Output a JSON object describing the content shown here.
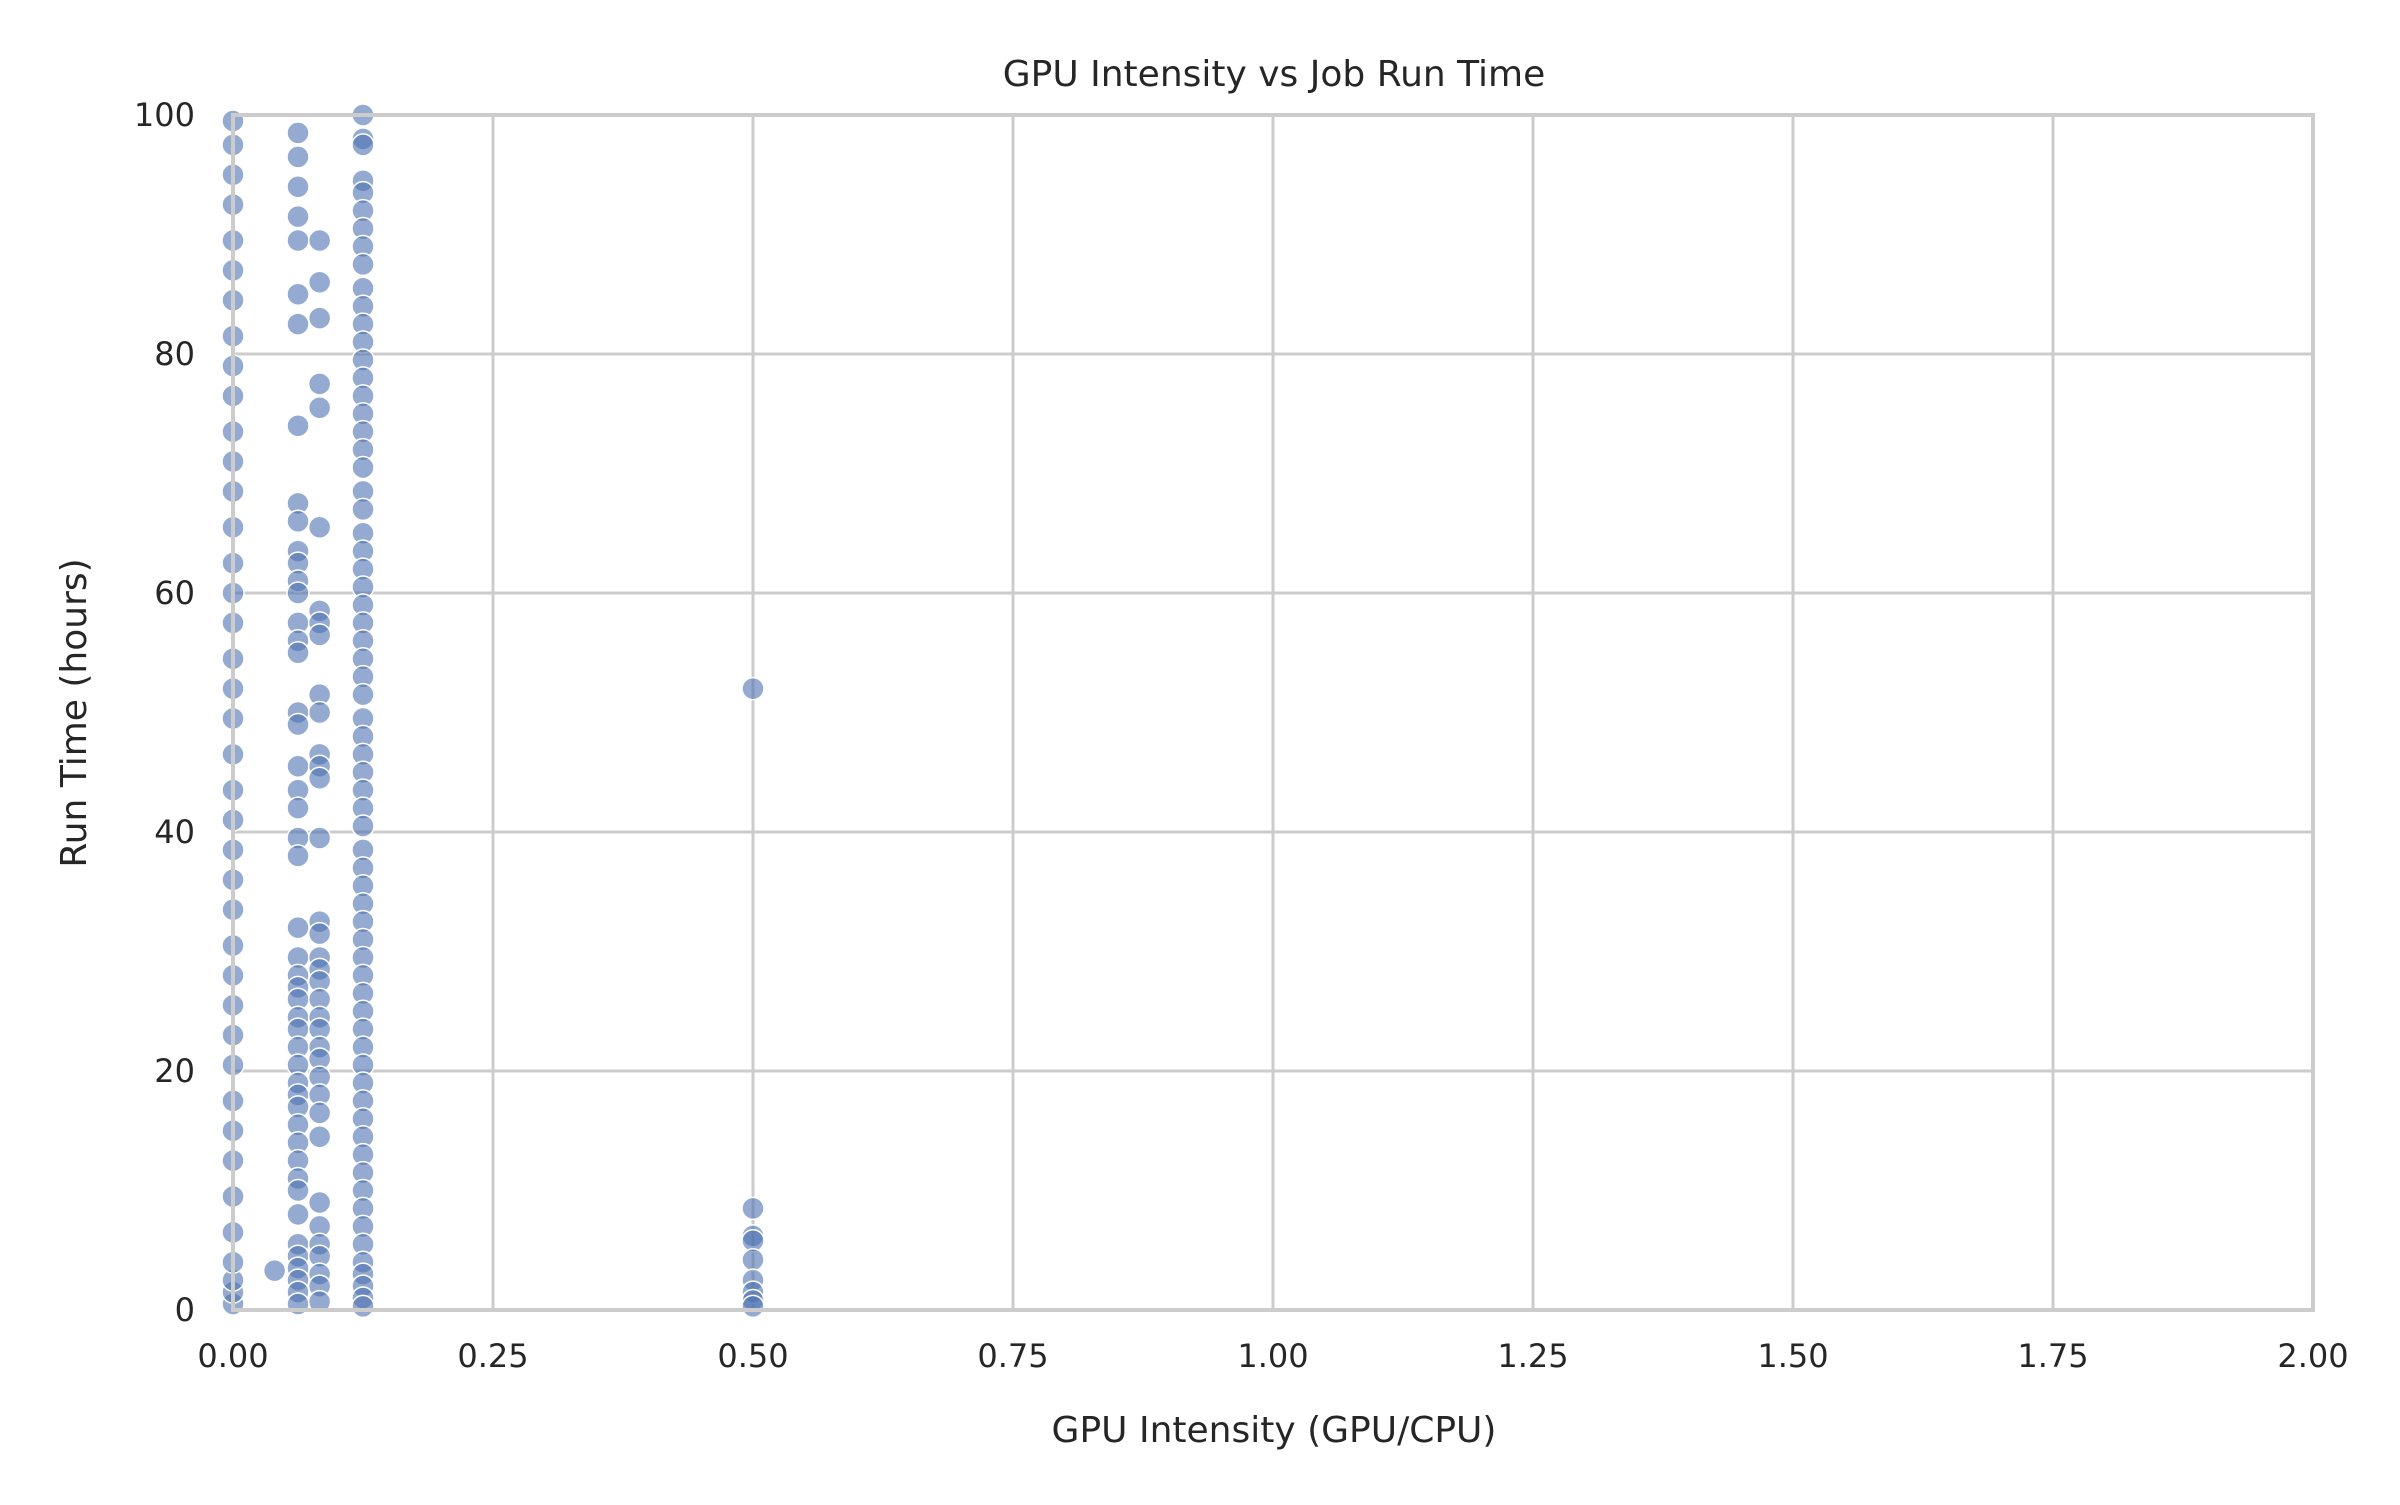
{
  "chart_data": {
    "type": "scatter",
    "title": "GPU Intensity vs Job Run Time",
    "xlabel": "GPU Intensity (GPU/CPU)",
    "ylabel": "Run Time (hours)",
    "xlim": [
      0,
      2.0
    ],
    "ylim": [
      0,
      100
    ],
    "x_ticks": [
      "0.00",
      "0.25",
      "0.50",
      "0.75",
      "1.00",
      "1.25",
      "1.50",
      "1.75",
      "2.00"
    ],
    "y_ticks": [
      "0",
      "20",
      "40",
      "60",
      "80",
      "100"
    ],
    "grid": true,
    "legend": "none",
    "marker_color": "#4c72b0",
    "grid_color": "#cccccc",
    "points": [
      {
        "x": 0.0,
        "y": 0.5
      },
      {
        "x": 0.0,
        "y": 1.5
      },
      {
        "x": 0.0,
        "y": 2.5
      },
      {
        "x": 0.0,
        "y": 4.0
      },
      {
        "x": 0.0,
        "y": 6.5
      },
      {
        "x": 0.0,
        "y": 9.5
      },
      {
        "x": 0.0,
        "y": 12.5
      },
      {
        "x": 0.0,
        "y": 15.0
      },
      {
        "x": 0.0,
        "y": 17.5
      },
      {
        "x": 0.0,
        "y": 20.5
      },
      {
        "x": 0.0,
        "y": 23.0
      },
      {
        "x": 0.0,
        "y": 25.5
      },
      {
        "x": 0.0,
        "y": 28.0
      },
      {
        "x": 0.0,
        "y": 30.5
      },
      {
        "x": 0.0,
        "y": 33.5
      },
      {
        "x": 0.0,
        "y": 36.0
      },
      {
        "x": 0.0,
        "y": 38.5
      },
      {
        "x": 0.0,
        "y": 41.0
      },
      {
        "x": 0.0,
        "y": 43.5
      },
      {
        "x": 0.0,
        "y": 46.5
      },
      {
        "x": 0.0,
        "y": 49.5
      },
      {
        "x": 0.0,
        "y": 52.0
      },
      {
        "x": 0.0,
        "y": 54.5
      },
      {
        "x": 0.0,
        "y": 57.5
      },
      {
        "x": 0.0,
        "y": 60.0
      },
      {
        "x": 0.0,
        "y": 62.5
      },
      {
        "x": 0.0,
        "y": 65.5
      },
      {
        "x": 0.0,
        "y": 68.5
      },
      {
        "x": 0.0,
        "y": 71.0
      },
      {
        "x": 0.0,
        "y": 73.5
      },
      {
        "x": 0.0,
        "y": 76.5
      },
      {
        "x": 0.0,
        "y": 79.0
      },
      {
        "x": 0.0,
        "y": 81.5
      },
      {
        "x": 0.0,
        "y": 84.5
      },
      {
        "x": 0.0,
        "y": 87.0
      },
      {
        "x": 0.0,
        "y": 89.5
      },
      {
        "x": 0.0,
        "y": 92.5
      },
      {
        "x": 0.0,
        "y": 95.0
      },
      {
        "x": 0.0,
        "y": 97.5
      },
      {
        "x": 0.0,
        "y": 99.5
      },
      {
        "x": 0.04,
        "y": 3.3
      },
      {
        "x": 0.0625,
        "y": 98.5
      },
      {
        "x": 0.0625,
        "y": 96.5
      },
      {
        "x": 0.0625,
        "y": 94.0
      },
      {
        "x": 0.0625,
        "y": 91.5
      },
      {
        "x": 0.0625,
        "y": 89.5
      },
      {
        "x": 0.0625,
        "y": 85.0
      },
      {
        "x": 0.0625,
        "y": 82.5
      },
      {
        "x": 0.0625,
        "y": 74.0
      },
      {
        "x": 0.0625,
        "y": 67.5
      },
      {
        "x": 0.0625,
        "y": 66.0
      },
      {
        "x": 0.0625,
        "y": 63.5
      },
      {
        "x": 0.0625,
        "y": 62.5
      },
      {
        "x": 0.0625,
        "y": 61.0
      },
      {
        "x": 0.0625,
        "y": 60.0
      },
      {
        "x": 0.0625,
        "y": 57.5
      },
      {
        "x": 0.0625,
        "y": 56.0
      },
      {
        "x": 0.0625,
        "y": 55.0
      },
      {
        "x": 0.0625,
        "y": 50.0
      },
      {
        "x": 0.0625,
        "y": 49.0
      },
      {
        "x": 0.0625,
        "y": 45.5
      },
      {
        "x": 0.0625,
        "y": 43.5
      },
      {
        "x": 0.0625,
        "y": 42.0
      },
      {
        "x": 0.0625,
        "y": 39.5
      },
      {
        "x": 0.0625,
        "y": 38.0
      },
      {
        "x": 0.0625,
        "y": 32.0
      },
      {
        "x": 0.0625,
        "y": 29.5
      },
      {
        "x": 0.0625,
        "y": 28.0
      },
      {
        "x": 0.0625,
        "y": 27.0
      },
      {
        "x": 0.0625,
        "y": 26.0
      },
      {
        "x": 0.0625,
        "y": 24.5
      },
      {
        "x": 0.0625,
        "y": 23.5
      },
      {
        "x": 0.0625,
        "y": 22.0
      },
      {
        "x": 0.0625,
        "y": 20.5
      },
      {
        "x": 0.0625,
        "y": 19.0
      },
      {
        "x": 0.0625,
        "y": 18.0
      },
      {
        "x": 0.0625,
        "y": 17.0
      },
      {
        "x": 0.0625,
        "y": 15.5
      },
      {
        "x": 0.0625,
        "y": 14.0
      },
      {
        "x": 0.0625,
        "y": 12.5
      },
      {
        "x": 0.0625,
        "y": 11.0
      },
      {
        "x": 0.0625,
        "y": 10.0
      },
      {
        "x": 0.0625,
        "y": 8.0
      },
      {
        "x": 0.0625,
        "y": 5.5
      },
      {
        "x": 0.0625,
        "y": 4.5
      },
      {
        "x": 0.0625,
        "y": 3.5
      },
      {
        "x": 0.0625,
        "y": 2.5
      },
      {
        "x": 0.0625,
        "y": 1.5
      },
      {
        "x": 0.0625,
        "y": 0.5
      },
      {
        "x": 0.0833,
        "y": 89.5
      },
      {
        "x": 0.0833,
        "y": 86.0
      },
      {
        "x": 0.0833,
        "y": 83.0
      },
      {
        "x": 0.0833,
        "y": 77.5
      },
      {
        "x": 0.0833,
        "y": 75.5
      },
      {
        "x": 0.0833,
        "y": 65.5
      },
      {
        "x": 0.0833,
        "y": 58.5
      },
      {
        "x": 0.0833,
        "y": 57.5
      },
      {
        "x": 0.0833,
        "y": 56.5
      },
      {
        "x": 0.0833,
        "y": 51.5
      },
      {
        "x": 0.0833,
        "y": 50.0
      },
      {
        "x": 0.0833,
        "y": 46.5
      },
      {
        "x": 0.0833,
        "y": 45.5
      },
      {
        "x": 0.0833,
        "y": 44.5
      },
      {
        "x": 0.0833,
        "y": 39.5
      },
      {
        "x": 0.0833,
        "y": 32.5
      },
      {
        "x": 0.0833,
        "y": 31.5
      },
      {
        "x": 0.0833,
        "y": 29.5
      },
      {
        "x": 0.0833,
        "y": 28.5
      },
      {
        "x": 0.0833,
        "y": 27.5
      },
      {
        "x": 0.0833,
        "y": 26.0
      },
      {
        "x": 0.0833,
        "y": 24.5
      },
      {
        "x": 0.0833,
        "y": 23.5
      },
      {
        "x": 0.0833,
        "y": 22.0
      },
      {
        "x": 0.0833,
        "y": 21.0
      },
      {
        "x": 0.0833,
        "y": 19.5
      },
      {
        "x": 0.0833,
        "y": 18.0
      },
      {
        "x": 0.0833,
        "y": 16.5
      },
      {
        "x": 0.0833,
        "y": 14.5
      },
      {
        "x": 0.0833,
        "y": 9.0
      },
      {
        "x": 0.0833,
        "y": 7.0
      },
      {
        "x": 0.0833,
        "y": 5.5
      },
      {
        "x": 0.0833,
        "y": 4.5
      },
      {
        "x": 0.0833,
        "y": 3.0
      },
      {
        "x": 0.0833,
        "y": 2.0
      },
      {
        "x": 0.0833,
        "y": 0.7
      },
      {
        "x": 0.125,
        "y": 100.0
      },
      {
        "x": 0.125,
        "y": 98.0
      },
      {
        "x": 0.125,
        "y": 97.5
      },
      {
        "x": 0.125,
        "y": 94.5
      },
      {
        "x": 0.125,
        "y": 93.5
      },
      {
        "x": 0.125,
        "y": 92.0
      },
      {
        "x": 0.125,
        "y": 90.5
      },
      {
        "x": 0.125,
        "y": 89.0
      },
      {
        "x": 0.125,
        "y": 87.5
      },
      {
        "x": 0.125,
        "y": 85.5
      },
      {
        "x": 0.125,
        "y": 84.0
      },
      {
        "x": 0.125,
        "y": 82.5
      },
      {
        "x": 0.125,
        "y": 81.0
      },
      {
        "x": 0.125,
        "y": 79.5
      },
      {
        "x": 0.125,
        "y": 78.0
      },
      {
        "x": 0.125,
        "y": 76.5
      },
      {
        "x": 0.125,
        "y": 75.0
      },
      {
        "x": 0.125,
        "y": 73.5
      },
      {
        "x": 0.125,
        "y": 72.0
      },
      {
        "x": 0.125,
        "y": 70.5
      },
      {
        "x": 0.125,
        "y": 68.5
      },
      {
        "x": 0.125,
        "y": 67.0
      },
      {
        "x": 0.125,
        "y": 65.0
      },
      {
        "x": 0.125,
        "y": 63.5
      },
      {
        "x": 0.125,
        "y": 62.0
      },
      {
        "x": 0.125,
        "y": 60.5
      },
      {
        "x": 0.125,
        "y": 59.0
      },
      {
        "x": 0.125,
        "y": 57.5
      },
      {
        "x": 0.125,
        "y": 56.0
      },
      {
        "x": 0.125,
        "y": 54.5
      },
      {
        "x": 0.125,
        "y": 53.0
      },
      {
        "x": 0.125,
        "y": 51.5
      },
      {
        "x": 0.125,
        "y": 49.5
      },
      {
        "x": 0.125,
        "y": 48.0
      },
      {
        "x": 0.125,
        "y": 46.5
      },
      {
        "x": 0.125,
        "y": 45.0
      },
      {
        "x": 0.125,
        "y": 43.5
      },
      {
        "x": 0.125,
        "y": 42.0
      },
      {
        "x": 0.125,
        "y": 40.5
      },
      {
        "x": 0.125,
        "y": 38.5
      },
      {
        "x": 0.125,
        "y": 37.0
      },
      {
        "x": 0.125,
        "y": 35.5
      },
      {
        "x": 0.125,
        "y": 34.0
      },
      {
        "x": 0.125,
        "y": 32.5
      },
      {
        "x": 0.125,
        "y": 31.0
      },
      {
        "x": 0.125,
        "y": 29.5
      },
      {
        "x": 0.125,
        "y": 28.0
      },
      {
        "x": 0.125,
        "y": 26.5
      },
      {
        "x": 0.125,
        "y": 25.0
      },
      {
        "x": 0.125,
        "y": 23.5
      },
      {
        "x": 0.125,
        "y": 22.0
      },
      {
        "x": 0.125,
        "y": 20.5
      },
      {
        "x": 0.125,
        "y": 19.0
      },
      {
        "x": 0.125,
        "y": 17.5
      },
      {
        "x": 0.125,
        "y": 16.0
      },
      {
        "x": 0.125,
        "y": 14.5
      },
      {
        "x": 0.125,
        "y": 13.0
      },
      {
        "x": 0.125,
        "y": 11.5
      },
      {
        "x": 0.125,
        "y": 10.0
      },
      {
        "x": 0.125,
        "y": 8.5
      },
      {
        "x": 0.125,
        "y": 7.0
      },
      {
        "x": 0.125,
        "y": 5.5
      },
      {
        "x": 0.125,
        "y": 4.0
      },
      {
        "x": 0.125,
        "y": 3.0
      },
      {
        "x": 0.125,
        "y": 2.0
      },
      {
        "x": 0.125,
        "y": 1.0
      },
      {
        "x": 0.125,
        "y": 0.3
      },
      {
        "x": 0.5,
        "y": 52.0
      },
      {
        "x": 0.5,
        "y": 8.5
      },
      {
        "x": 0.5,
        "y": 6.2
      },
      {
        "x": 0.5,
        "y": 5.8
      },
      {
        "x": 0.5,
        "y": 4.2
      },
      {
        "x": 0.5,
        "y": 2.5
      },
      {
        "x": 0.5,
        "y": 1.5
      },
      {
        "x": 0.5,
        "y": 0.8
      },
      {
        "x": 0.5,
        "y": 0.3
      }
    ]
  }
}
